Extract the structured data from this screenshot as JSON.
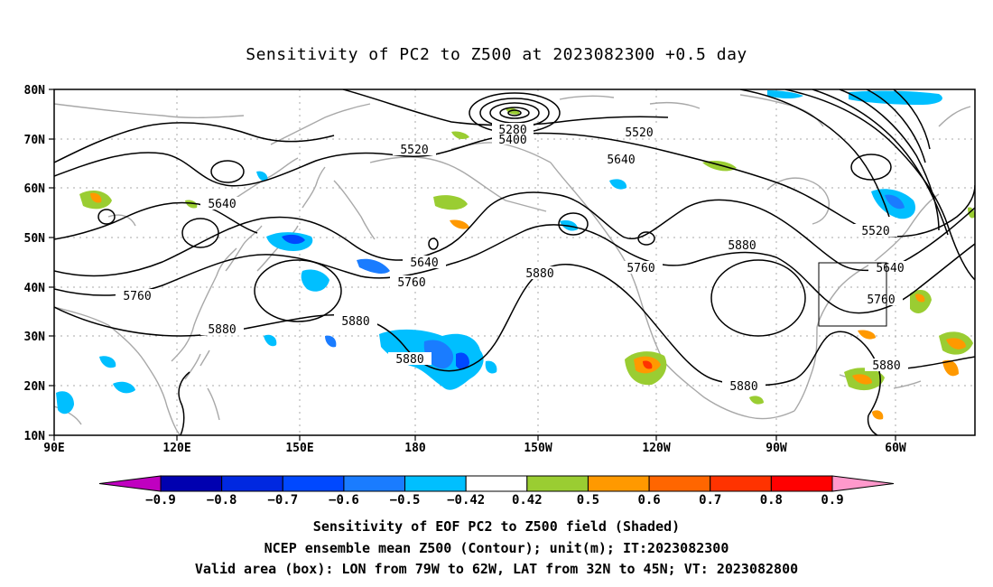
{
  "title": "Sensitivity of PC2 to Z500 at 2023082300 +0.5 day",
  "map": {
    "lon_labels": [
      "90E",
      "120E",
      "150E",
      "180",
      "150W",
      "120W",
      "90W",
      "60W"
    ],
    "lat_labels": [
      "80N",
      "70N",
      "60N",
      "50N",
      "40N",
      "30N",
      "20N",
      "10N"
    ],
    "contour_labels": [
      "5280",
      "5400",
      "5520",
      "5520",
      "5520",
      "5640",
      "5640",
      "5640",
      "5640",
      "5760",
      "5760",
      "5760",
      "5760",
      "5880",
      "5880",
      "5880",
      "5880",
      "5880",
      "5880"
    ],
    "valid_box": {
      "lon_from": "79W",
      "lon_to": "62W",
      "lat_from": "32N",
      "lat_to": "45N"
    }
  },
  "colorbar": {
    "labels": [
      "-0.9",
      "-0.8",
      "-0.7",
      "-0.6",
      "-0.5",
      "-0.42",
      "0.42",
      "0.5",
      "0.6",
      "0.7",
      "0.8",
      "0.9"
    ],
    "colors": [
      "#c000c0",
      "#0000b0",
      "#0028e0",
      "#0048ff",
      "#1a7cff",
      "#00bfff",
      "#ffffff",
      "#9acd32",
      "#ff9900",
      "#ff6600",
      "#ff3300",
      "#ff0000",
      "#ff99cc"
    ]
  },
  "captions": {
    "line1": "Sensitivity of EOF PC2 to Z500 field (Shaded)",
    "line2": "NCEP ensemble mean Z500 (Contour); unit(m); IT:2023082300",
    "line3": "Valid area (box): LON from 79W to 62W, LAT from 32N to 45N; VT: 2023082800"
  }
}
